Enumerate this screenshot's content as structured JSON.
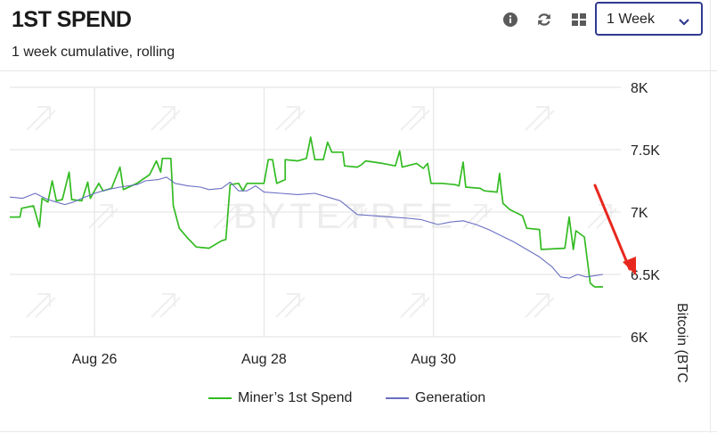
{
  "header": {
    "title": "1ST SPEND",
    "subtitle": "1 week cumulative, rolling",
    "period_select": {
      "value": "1 Week"
    }
  },
  "toolbar": {
    "icons": [
      "info-icon",
      "refresh-icon",
      "grid-icon",
      "chevron-down-icon"
    ]
  },
  "watermark": "BYTETREE",
  "colors": {
    "miner": "#33bb22",
    "generation": "#6a6fc2",
    "accent": "#2f3a8f",
    "arrow": "#e8281e",
    "grid": "#e2e2e2"
  },
  "chart_data": {
    "type": "line",
    "title": "",
    "xlabel": "",
    "ylabel": "Bitcoin (BTC)",
    "ylim": [
      6000,
      8000
    ],
    "y_ticks": [
      {
        "value": 8000,
        "label": "8K"
      },
      {
        "value": 7500,
        "label": "7.5K"
      },
      {
        "value": 7000,
        "label": "7K"
      },
      {
        "value": 6500,
        "label": "6.5K"
      },
      {
        "value": 6000,
        "label": "6K"
      }
    ],
    "xlim": [
      0,
      7.21
    ],
    "x_ticks": [
      {
        "value": 1,
        "label": "Aug 26"
      },
      {
        "value": 3,
        "label": "Aug 28"
      },
      {
        "value": 5,
        "label": "Aug 30"
      }
    ],
    "legend": {
      "position": "bottom"
    },
    "series": [
      {
        "name": "Miner’s 1st Spend",
        "color": "#33bb22",
        "points": [
          [
            0.0,
            6960
          ],
          [
            0.12,
            6960
          ],
          [
            0.14,
            7030
          ],
          [
            0.28,
            7050
          ],
          [
            0.35,
            6880
          ],
          [
            0.38,
            7110
          ],
          [
            0.45,
            7080
          ],
          [
            0.5,
            7250
          ],
          [
            0.55,
            7090
          ],
          [
            0.62,
            7100
          ],
          [
            0.7,
            7320
          ],
          [
            0.73,
            7100
          ],
          [
            0.85,
            7090
          ],
          [
            0.92,
            7240
          ],
          [
            0.95,
            7110
          ],
          [
            1.05,
            7230
          ],
          [
            1.1,
            7170
          ],
          [
            1.2,
            7190
          ],
          [
            1.3,
            7360
          ],
          [
            1.34,
            7180
          ],
          [
            1.5,
            7230
          ],
          [
            1.65,
            7300
          ],
          [
            1.73,
            7410
          ],
          [
            1.78,
            7320
          ],
          [
            1.8,
            7430
          ],
          [
            1.9,
            7430
          ],
          [
            1.93,
            7050
          ],
          [
            2.0,
            6870
          ],
          [
            2.1,
            6790
          ],
          [
            2.2,
            6720
          ],
          [
            2.35,
            6710
          ],
          [
            2.5,
            6770
          ],
          [
            2.55,
            6780
          ],
          [
            2.6,
            7220
          ],
          [
            2.7,
            7230
          ],
          [
            2.75,
            7170
          ],
          [
            2.8,
            7230
          ],
          [
            3.0,
            7230
          ],
          [
            3.05,
            7420
          ],
          [
            3.1,
            7420
          ],
          [
            3.15,
            7230
          ],
          [
            3.25,
            7260
          ],
          [
            3.25,
            7420
          ],
          [
            3.4,
            7410
          ],
          [
            3.5,
            7430
          ],
          [
            3.55,
            7600
          ],
          [
            3.6,
            7420
          ],
          [
            3.7,
            7420
          ],
          [
            3.75,
            7560
          ],
          [
            3.8,
            7480
          ],
          [
            3.93,
            7480
          ],
          [
            3.95,
            7370
          ],
          [
            4.1,
            7360
          ],
          [
            4.15,
            7380
          ],
          [
            4.2,
            7410
          ],
          [
            4.4,
            7390
          ],
          [
            4.55,
            7370
          ],
          [
            4.6,
            7490
          ],
          [
            4.63,
            7360
          ],
          [
            4.8,
            7390
          ],
          [
            4.88,
            7350
          ],
          [
            4.93,
            7390
          ],
          [
            4.97,
            7230
          ],
          [
            5.1,
            7230
          ],
          [
            5.25,
            7220
          ],
          [
            5.3,
            7210
          ],
          [
            5.35,
            7400
          ],
          [
            5.38,
            7200
          ],
          [
            5.55,
            7190
          ],
          [
            5.6,
            7170
          ],
          [
            5.75,
            7160
          ],
          [
            5.78,
            7310
          ],
          [
            5.8,
            7180
          ],
          [
            5.82,
            7070
          ],
          [
            5.9,
            7020
          ],
          [
            6.05,
            6970
          ],
          [
            6.1,
            6870
          ],
          [
            6.25,
            6860
          ],
          [
            6.27,
            6700
          ],
          [
            6.55,
            6710
          ],
          [
            6.6,
            6960
          ],
          [
            6.65,
            6700
          ],
          [
            6.68,
            6850
          ],
          [
            6.78,
            6800
          ],
          [
            6.85,
            6430
          ],
          [
            6.9,
            6400
          ],
          [
            7.0,
            6400
          ]
        ]
      },
      {
        "name": "Generation",
        "color": "#6a6fc2",
        "points": [
          [
            0.0,
            7120
          ],
          [
            0.15,
            7110
          ],
          [
            0.3,
            7150
          ],
          [
            0.45,
            7100
          ],
          [
            0.55,
            7080
          ],
          [
            0.65,
            7060
          ],
          [
            0.75,
            7080
          ],
          [
            0.85,
            7110
          ],
          [
            1.0,
            7150
          ],
          [
            1.15,
            7180
          ],
          [
            1.3,
            7200
          ],
          [
            1.5,
            7220
          ],
          [
            1.6,
            7250
          ],
          [
            1.75,
            7260
          ],
          [
            1.85,
            7280
          ],
          [
            1.95,
            7230
          ],
          [
            2.1,
            7210
          ],
          [
            2.25,
            7200
          ],
          [
            2.35,
            7180
          ],
          [
            2.5,
            7190
          ],
          [
            2.6,
            7240
          ],
          [
            2.7,
            7170
          ],
          [
            2.8,
            7170
          ],
          [
            2.9,
            7210
          ],
          [
            3.0,
            7160
          ],
          [
            3.2,
            7150
          ],
          [
            3.4,
            7140
          ],
          [
            3.6,
            7150
          ],
          [
            3.75,
            7120
          ],
          [
            3.9,
            7090
          ],
          [
            4.1,
            6980
          ],
          [
            4.3,
            6970
          ],
          [
            4.5,
            6960
          ],
          [
            4.7,
            6950
          ],
          [
            4.85,
            6940
          ],
          [
            5.05,
            6900
          ],
          [
            5.2,
            6920
          ],
          [
            5.35,
            6930
          ],
          [
            5.5,
            6900
          ],
          [
            5.65,
            6860
          ],
          [
            5.8,
            6810
          ],
          [
            5.95,
            6760
          ],
          [
            6.1,
            6700
          ],
          [
            6.25,
            6640
          ],
          [
            6.4,
            6560
          ],
          [
            6.5,
            6480
          ],
          [
            6.6,
            6470
          ],
          [
            6.7,
            6500
          ],
          [
            6.8,
            6480
          ],
          [
            6.9,
            6490
          ],
          [
            7.0,
            6500
          ]
        ]
      }
    ]
  }
}
